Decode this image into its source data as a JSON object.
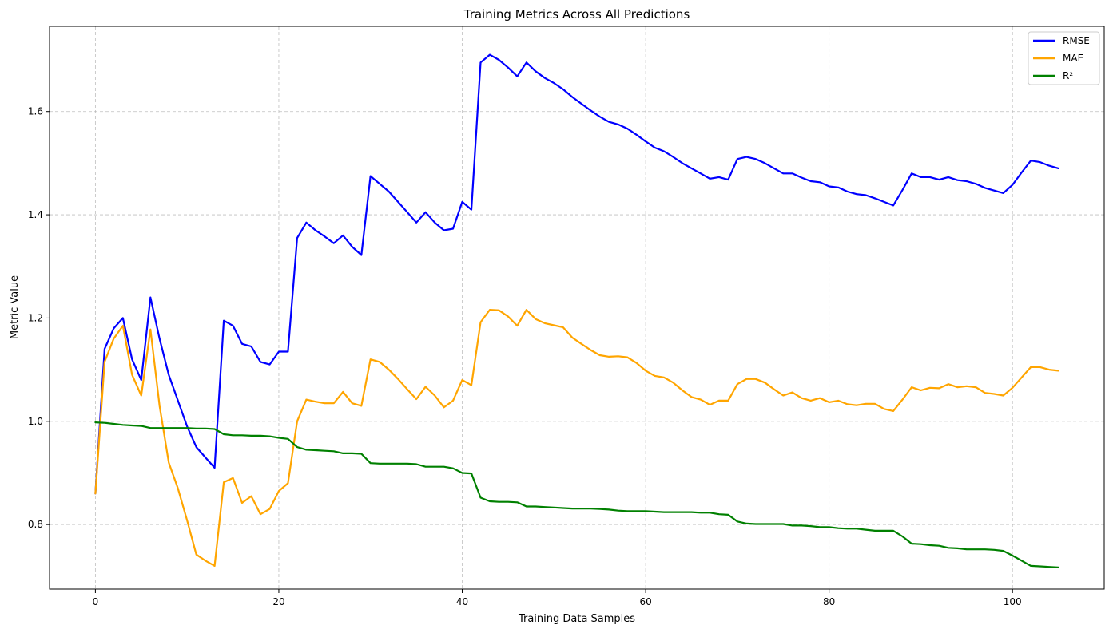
{
  "chart_data": {
    "type": "line",
    "title": "Training Metrics Across All Predictions",
    "xlabel": "Training Data Samples",
    "ylabel": "Metric Value",
    "xlim": [
      -5,
      110
    ],
    "ylim": [
      0.675,
      1.765
    ],
    "xticks": [
      0,
      20,
      40,
      60,
      80,
      100
    ],
    "yticks": [
      0.8,
      1.0,
      1.2,
      1.4,
      1.6
    ],
    "xtick_labels": [
      "0",
      "20",
      "40",
      "60",
      "80",
      "100"
    ],
    "ytick_labels": [
      "0.8",
      "1.0",
      "1.2",
      "1.4",
      "1.6"
    ],
    "grid": true,
    "legend_position": "top-right",
    "series": [
      {
        "name": "RMSE",
        "color": "#0000ff",
        "points": [
          [
            0,
            0.86
          ],
          [
            1,
            1.14
          ],
          [
            2,
            1.18
          ],
          [
            3,
            1.2
          ],
          [
            4,
            1.12
          ],
          [
            5,
            1.08
          ],
          [
            6,
            1.24
          ],
          [
            7,
            1.16
          ],
          [
            8,
            1.09
          ],
          [
            9,
            1.04
          ],
          [
            10,
            0.99
          ],
          [
            11,
            0.95
          ],
          [
            12,
            0.93
          ],
          [
            13,
            0.91
          ],
          [
            14,
            1.195
          ],
          [
            15,
            1.185
          ],
          [
            16,
            1.15
          ],
          [
            17,
            1.145
          ],
          [
            18,
            1.115
          ],
          [
            19,
            1.11
          ],
          [
            20,
            1.135
          ],
          [
            21,
            1.135
          ],
          [
            22,
            1.355
          ],
          [
            23,
            1.385
          ],
          [
            24,
            1.37
          ],
          [
            25,
            1.358
          ],
          [
            26,
            1.345
          ],
          [
            27,
            1.36
          ],
          [
            28,
            1.338
          ],
          [
            29,
            1.322
          ],
          [
            30,
            1.475
          ],
          [
            31,
            1.46
          ],
          [
            32,
            1.445
          ],
          [
            33,
            1.425
          ],
          [
            34,
            1.405
          ],
          [
            35,
            1.385
          ],
          [
            36,
            1.405
          ],
          [
            37,
            1.385
          ],
          [
            38,
            1.37
          ],
          [
            39,
            1.373
          ],
          [
            40,
            1.425
          ],
          [
            41,
            1.41
          ],
          [
            42,
            1.695
          ],
          [
            43,
            1.71
          ],
          [
            44,
            1.7
          ],
          [
            45,
            1.685
          ],
          [
            46,
            1.668
          ],
          [
            47,
            1.695
          ],
          [
            48,
            1.678
          ],
          [
            49,
            1.665
          ],
          [
            50,
            1.655
          ],
          [
            51,
            1.643
          ],
          [
            52,
            1.628
          ],
          [
            53,
            1.615
          ],
          [
            54,
            1.602
          ],
          [
            55,
            1.59
          ],
          [
            56,
            1.58
          ],
          [
            57,
            1.575
          ],
          [
            58,
            1.567
          ],
          [
            59,
            1.555
          ],
          [
            60,
            1.542
          ],
          [
            61,
            1.53
          ],
          [
            62,
            1.523
          ],
          [
            63,
            1.512
          ],
          [
            64,
            1.5
          ],
          [
            65,
            1.49
          ],
          [
            66,
            1.48
          ],
          [
            67,
            1.47
          ],
          [
            68,
            1.473
          ],
          [
            69,
            1.468
          ],
          [
            70,
            1.508
          ],
          [
            71,
            1.512
          ],
          [
            72,
            1.508
          ],
          [
            73,
            1.5
          ],
          [
            74,
            1.49
          ],
          [
            75,
            1.48
          ],
          [
            76,
            1.48
          ],
          [
            77,
            1.472
          ],
          [
            78,
            1.465
          ],
          [
            79,
            1.463
          ],
          [
            80,
            1.455
          ],
          [
            81,
            1.453
          ],
          [
            82,
            1.445
          ],
          [
            83,
            1.44
          ],
          [
            84,
            1.438
          ],
          [
            85,
            1.432
          ],
          [
            86,
            1.425
          ],
          [
            87,
            1.418
          ],
          [
            88,
            1.448
          ],
          [
            89,
            1.48
          ],
          [
            90,
            1.473
          ],
          [
            91,
            1.473
          ],
          [
            92,
            1.468
          ],
          [
            93,
            1.473
          ],
          [
            94,
            1.467
          ],
          [
            95,
            1.465
          ],
          [
            96,
            1.46
          ],
          [
            97,
            1.452
          ],
          [
            98,
            1.447
          ],
          [
            99,
            1.442
          ],
          [
            100,
            1.458
          ],
          [
            101,
            1.482
          ],
          [
            102,
            1.505
          ],
          [
            103,
            1.502
          ],
          [
            104,
            1.495
          ],
          [
            105,
            1.49
          ]
        ]
      },
      {
        "name": "MAE",
        "color": "#ffa500",
        "points": [
          [
            0,
            0.86
          ],
          [
            1,
            1.115
          ],
          [
            2,
            1.16
          ],
          [
            3,
            1.185
          ],
          [
            4,
            1.09
          ],
          [
            5,
            1.05
          ],
          [
            6,
            1.178
          ],
          [
            7,
            1.03
          ],
          [
            8,
            0.92
          ],
          [
            9,
            0.87
          ],
          [
            10,
            0.808
          ],
          [
            11,
            0.742
          ],
          [
            12,
            0.73
          ],
          [
            13,
            0.72
          ],
          [
            14,
            0.882
          ],
          [
            15,
            0.89
          ],
          [
            16,
            0.842
          ],
          [
            17,
            0.855
          ],
          [
            18,
            0.82
          ],
          [
            19,
            0.83
          ],
          [
            20,
            0.865
          ],
          [
            21,
            0.88
          ],
          [
            22,
            1.0
          ],
          [
            23,
            1.042
          ],
          [
            24,
            1.038
          ],
          [
            25,
            1.035
          ],
          [
            26,
            1.035
          ],
          [
            27,
            1.057
          ],
          [
            28,
            1.035
          ],
          [
            29,
            1.03
          ],
          [
            30,
            1.12
          ],
          [
            31,
            1.115
          ],
          [
            32,
            1.1
          ],
          [
            33,
            1.082
          ],
          [
            34,
            1.062
          ],
          [
            35,
            1.043
          ],
          [
            36,
            1.067
          ],
          [
            37,
            1.05
          ],
          [
            38,
            1.027
          ],
          [
            39,
            1.04
          ],
          [
            40,
            1.08
          ],
          [
            41,
            1.07
          ],
          [
            42,
            1.192
          ],
          [
            43,
            1.216
          ],
          [
            44,
            1.215
          ],
          [
            45,
            1.203
          ],
          [
            46,
            1.185
          ],
          [
            47,
            1.216
          ],
          [
            48,
            1.198
          ],
          [
            49,
            1.19
          ],
          [
            50,
            1.186
          ],
          [
            51,
            1.182
          ],
          [
            52,
            1.162
          ],
          [
            53,
            1.15
          ],
          [
            54,
            1.138
          ],
          [
            55,
            1.128
          ],
          [
            56,
            1.125
          ],
          [
            57,
            1.126
          ],
          [
            58,
            1.124
          ],
          [
            59,
            1.113
          ],
          [
            60,
            1.098
          ],
          [
            61,
            1.088
          ],
          [
            62,
            1.085
          ],
          [
            63,
            1.075
          ],
          [
            64,
            1.06
          ],
          [
            65,
            1.047
          ],
          [
            66,
            1.042
          ],
          [
            67,
            1.032
          ],
          [
            68,
            1.04
          ],
          [
            69,
            1.04
          ],
          [
            70,
            1.072
          ],
          [
            71,
            1.082
          ],
          [
            72,
            1.082
          ],
          [
            73,
            1.075
          ],
          [
            74,
            1.062
          ],
          [
            75,
            1.05
          ],
          [
            76,
            1.056
          ],
          [
            77,
            1.045
          ],
          [
            78,
            1.04
          ],
          [
            79,
            1.045
          ],
          [
            80,
            1.037
          ],
          [
            81,
            1.04
          ],
          [
            82,
            1.033
          ],
          [
            83,
            1.031
          ],
          [
            84,
            1.034
          ],
          [
            85,
            1.034
          ],
          [
            86,
            1.024
          ],
          [
            87,
            1.02
          ],
          [
            88,
            1.042
          ],
          [
            89,
            1.066
          ],
          [
            90,
            1.06
          ],
          [
            91,
            1.065
          ],
          [
            92,
            1.064
          ],
          [
            93,
            1.072
          ],
          [
            94,
            1.066
          ],
          [
            95,
            1.068
          ],
          [
            96,
            1.066
          ],
          [
            97,
            1.055
          ],
          [
            98,
            1.053
          ],
          [
            99,
            1.05
          ],
          [
            100,
            1.065
          ],
          [
            101,
            1.085
          ],
          [
            102,
            1.105
          ],
          [
            103,
            1.105
          ],
          [
            104,
            1.1
          ],
          [
            105,
            1.098
          ]
        ]
      },
      {
        "name": "R²",
        "color": "#008000",
        "points": [
          [
            0,
            0.998
          ],
          [
            1,
            0.997
          ],
          [
            2,
            0.995
          ],
          [
            3,
            0.993
          ],
          [
            4,
            0.992
          ],
          [
            5,
            0.991
          ],
          [
            6,
            0.987
          ],
          [
            7,
            0.987
          ],
          [
            8,
            0.987
          ],
          [
            9,
            0.987
          ],
          [
            10,
            0.987
          ],
          [
            11,
            0.986
          ],
          [
            12,
            0.986
          ],
          [
            13,
            0.985
          ],
          [
            14,
            0.975
          ],
          [
            15,
            0.973
          ],
          [
            16,
            0.973
          ],
          [
            17,
            0.972
          ],
          [
            18,
            0.972
          ],
          [
            19,
            0.971
          ],
          [
            20,
            0.968
          ],
          [
            21,
            0.966
          ],
          [
            22,
            0.95
          ],
          [
            23,
            0.945
          ],
          [
            24,
            0.944
          ],
          [
            25,
            0.943
          ],
          [
            26,
            0.942
          ],
          [
            27,
            0.938
          ],
          [
            28,
            0.938
          ],
          [
            29,
            0.937
          ],
          [
            30,
            0.919
          ],
          [
            31,
            0.918
          ],
          [
            32,
            0.918
          ],
          [
            33,
            0.918
          ],
          [
            34,
            0.918
          ],
          [
            35,
            0.917
          ],
          [
            36,
            0.912
          ],
          [
            37,
            0.912
          ],
          [
            38,
            0.912
          ],
          [
            39,
            0.909
          ],
          [
            40,
            0.9
          ],
          [
            41,
            0.899
          ],
          [
            42,
            0.852
          ],
          [
            43,
            0.845
          ],
          [
            44,
            0.844
          ],
          [
            45,
            0.844
          ],
          [
            46,
            0.843
          ],
          [
            47,
            0.835
          ],
          [
            48,
            0.835
          ],
          [
            49,
            0.834
          ],
          [
            50,
            0.833
          ],
          [
            51,
            0.832
          ],
          [
            52,
            0.831
          ],
          [
            53,
            0.831
          ],
          [
            54,
            0.831
          ],
          [
            55,
            0.83
          ],
          [
            56,
            0.829
          ],
          [
            57,
            0.827
          ],
          [
            58,
            0.826
          ],
          [
            59,
            0.826
          ],
          [
            60,
            0.826
          ],
          [
            61,
            0.825
          ],
          [
            62,
            0.824
          ],
          [
            63,
            0.824
          ],
          [
            64,
            0.824
          ],
          [
            65,
            0.824
          ],
          [
            66,
            0.823
          ],
          [
            67,
            0.823
          ],
          [
            68,
            0.82
          ],
          [
            69,
            0.819
          ],
          [
            70,
            0.806
          ],
          [
            71,
            0.802
          ],
          [
            72,
            0.801
          ],
          [
            73,
            0.801
          ],
          [
            74,
            0.801
          ],
          [
            75,
            0.801
          ],
          [
            76,
            0.798
          ],
          [
            77,
            0.798
          ],
          [
            78,
            0.797
          ],
          [
            79,
            0.795
          ],
          [
            80,
            0.795
          ],
          [
            81,
            0.793
          ],
          [
            82,
            0.792
          ],
          [
            83,
            0.792
          ],
          [
            84,
            0.79
          ],
          [
            85,
            0.788
          ],
          [
            86,
            0.788
          ],
          [
            87,
            0.788
          ],
          [
            88,
            0.777
          ],
          [
            89,
            0.763
          ],
          [
            90,
            0.762
          ],
          [
            91,
            0.76
          ],
          [
            92,
            0.759
          ],
          [
            93,
            0.755
          ],
          [
            94,
            0.754
          ],
          [
            95,
            0.752
          ],
          [
            96,
            0.752
          ],
          [
            97,
            0.752
          ],
          [
            98,
            0.751
          ],
          [
            99,
            0.749
          ],
          [
            100,
            0.74
          ],
          [
            101,
            0.73
          ],
          [
            102,
            0.72
          ],
          [
            103,
            0.719
          ],
          [
            104,
            0.718
          ],
          [
            105,
            0.717
          ]
        ]
      }
    ]
  }
}
